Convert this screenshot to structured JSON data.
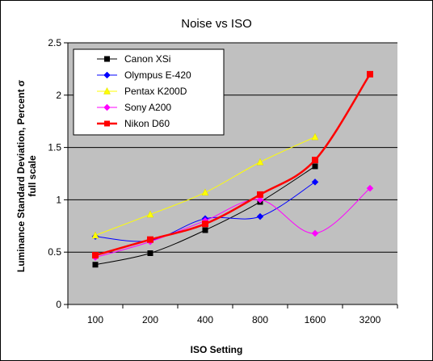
{
  "chart_data": {
    "type": "line",
    "title": "Noise vs ISO",
    "xlabel": "ISO Setting",
    "ylabel_lines": [
      "Luminance Standard Deviation, Percent σ",
      "full scale"
    ],
    "categories": [
      "100",
      "200",
      "400",
      "800",
      "1600",
      "3200"
    ],
    "ylim": [
      0,
      2.5
    ],
    "yticks": [
      "0",
      "0.5",
      "1",
      "1.5",
      "2",
      "2.5"
    ],
    "grid": "horizontal",
    "legend_position": "top-left",
    "plot_background": "#c0c0c0",
    "series": [
      {
        "name": "Canon XSi",
        "color": "#000000",
        "marker": "square",
        "width": 1,
        "values": [
          0.38,
          0.49,
          0.71,
          0.98,
          1.32,
          null
        ]
      },
      {
        "name": "Olympus E-420",
        "color": "#0000ff",
        "marker": "diamond",
        "width": 1,
        "values": [
          0.65,
          0.61,
          0.82,
          0.84,
          1.17,
          null
        ]
      },
      {
        "name": "Pentax K200D",
        "color": "#ffff00",
        "marker": "triangle",
        "width": 1,
        "values": [
          0.66,
          0.86,
          1.07,
          1.36,
          1.6,
          null
        ]
      },
      {
        "name": "Sony A200",
        "color": "#ff00ff",
        "marker": "diamond",
        "width": 1,
        "values": [
          0.45,
          0.6,
          0.8,
          1.0,
          0.68,
          1.11
        ]
      },
      {
        "name": "Nikon D60",
        "color": "#ff0000",
        "marker": "square",
        "width": 2.5,
        "values": [
          0.47,
          0.62,
          0.77,
          1.05,
          1.38,
          2.2
        ]
      }
    ]
  }
}
